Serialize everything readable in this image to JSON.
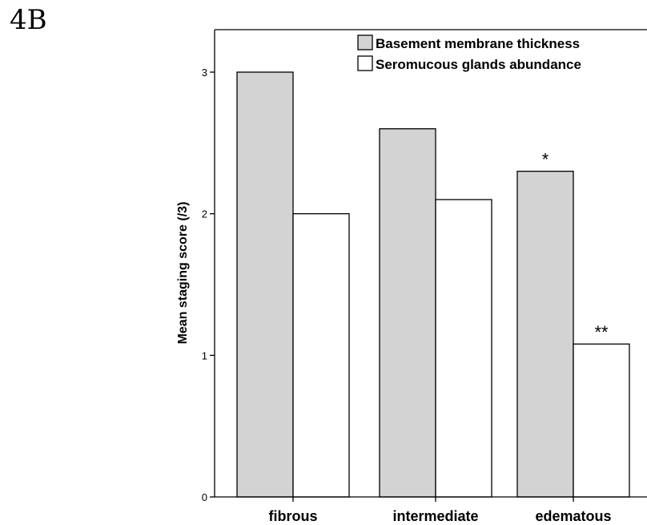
{
  "figure_label": "4B",
  "chart_data": {
    "type": "bar",
    "categories": [
      "fibrous",
      "intermediate",
      "edematous"
    ],
    "series": [
      {
        "name": "Basement membrane thickness",
        "values": [
          3.0,
          2.6,
          2.3
        ],
        "color": "#d3d3d3"
      },
      {
        "name": "Seromucous glands abundance",
        "values": [
          2.0,
          2.1,
          1.08
        ],
        "color": "#ffffff"
      }
    ],
    "annotations": [
      {
        "category": "edematous",
        "series": 0,
        "text": "*"
      },
      {
        "category": "edematous",
        "series": 1,
        "text": "**"
      }
    ],
    "ylabel": "Mean staging score (/3)",
    "xlabel": "",
    "ylim": [
      0,
      3.3
    ],
    "yticks": [
      0,
      1,
      2,
      3
    ],
    "legend_position": "top-right",
    "grid": false
  }
}
